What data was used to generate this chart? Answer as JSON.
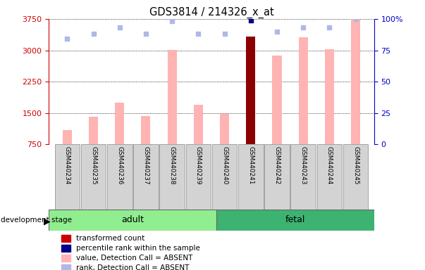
{
  "title": "GDS3814 / 214326_x_at",
  "samples": [
    "GSM440234",
    "GSM440235",
    "GSM440236",
    "GSM440237",
    "GSM440238",
    "GSM440239",
    "GSM440240",
    "GSM440241",
    "GSM440242",
    "GSM440243",
    "GSM440244",
    "GSM440245"
  ],
  "bar_values": [
    1100,
    1420,
    1750,
    1430,
    3010,
    1700,
    1480,
    3320,
    2880,
    3310,
    3020,
    3750
  ],
  "bar_colors": [
    "#ffb3b3",
    "#ffb3b3",
    "#ffb3b3",
    "#ffb3b3",
    "#ffb3b3",
    "#ffb3b3",
    "#ffb3b3",
    "#8b0000",
    "#ffb3b3",
    "#ffb3b3",
    "#ffb3b3",
    "#ffb3b3"
  ],
  "rank_values": [
    84,
    88,
    93,
    88,
    98,
    88,
    88,
    99,
    90,
    93,
    93,
    100
  ],
  "rank_colors": [
    "#b0b8e8",
    "#b0b8e8",
    "#b0b8e8",
    "#b0b8e8",
    "#b0b8e8",
    "#b0b8e8",
    "#b0b8e8",
    "#00008b",
    "#b0b8e8",
    "#b0b8e8",
    "#b0b8e8",
    "#b0b8e8"
  ],
  "ylim_left": [
    750,
    3750
  ],
  "ylim_right": [
    0,
    100
  ],
  "yticks_left": [
    750,
    1500,
    2250,
    3000,
    3750
  ],
  "yticks_right": [
    0,
    25,
    50,
    75,
    100
  ],
  "group_labels": [
    "adult",
    "fetal"
  ],
  "group_adult_count": 6,
  "group_total_count": 12,
  "group_colors": [
    "#90ee90",
    "#3cb371"
  ],
  "bar_width": 0.35,
  "background_color": "#ffffff",
  "left_axis_color": "#cc0000",
  "right_axis_color": "#0000cc",
  "sample_box_color": "#d3d3d3",
  "legend_items": [
    {
      "label": "transformed count",
      "color": "#cc0000"
    },
    {
      "label": "percentile rank within the sample",
      "color": "#00008b"
    },
    {
      "label": "value, Detection Call = ABSENT",
      "color": "#ffb3b3"
    },
    {
      "label": "rank, Detection Call = ABSENT",
      "color": "#b0b8e8"
    }
  ],
  "dev_stage_label": "development stage"
}
